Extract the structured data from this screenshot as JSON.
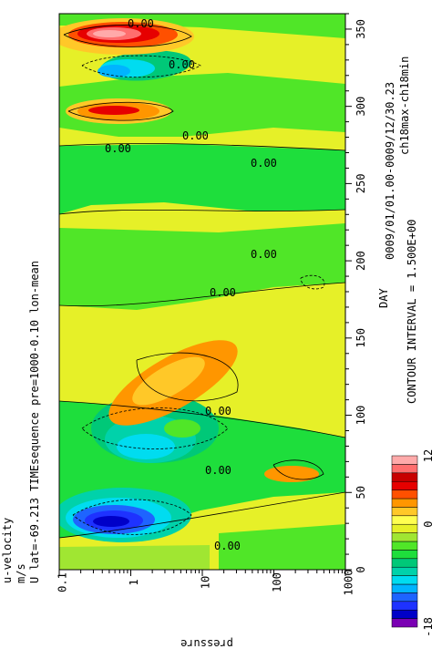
{
  "header": {
    "line1": "u-velocity",
    "line2": "m/s",
    "line3": "U lat=-69.213 TIMEsequence pre=1000-0.10 lon-mean",
    "line4": "0009/01/01.00-0009/12/30.23",
    "line5": "ch18max-ch18min"
  },
  "contour_interval_text": "CONTOUR INTERVAL = 1.500E+00",
  "chart_data": {
    "type": "heatmap",
    "title": "u-velocity",
    "units": "m/s",
    "xlabel": "DAY",
    "ylabel": "pressure",
    "x_axis": {
      "range": [
        0,
        360
      ],
      "ticks": [
        "0",
        "50",
        "100",
        "150",
        "200",
        "250",
        "300",
        "350"
      ]
    },
    "y_axis": {
      "scale": "log",
      "range": [
        0.1,
        1000
      ],
      "ticks": [
        "0.1",
        "1",
        "10",
        "100",
        "1000"
      ]
    },
    "contour_interval": 1.5,
    "contour_labels": [
      "0.00",
      "0.00",
      "0.00",
      "0.00",
      "0.00",
      "0.00",
      "0.00",
      "0.00",
      "0.00",
      "0.00"
    ],
    "colorbar": {
      "min": -18,
      "max": 12,
      "tick_labels": [
        "-18",
        "0",
        "12"
      ],
      "colors": [
        "#7a00b3",
        "#0000c8",
        "#1e32ff",
        "#1e64ff",
        "#00b4ff",
        "#00dcf0",
        "#00d2aa",
        "#00c878",
        "#1ede3c",
        "#50e628",
        "#a0e632",
        "#e6f028",
        "#ffff50",
        "#ffc828",
        "#ff9600",
        "#ff5000",
        "#e60000",
        "#c80000",
        "#ff6e6e",
        "#ffaaaa"
      ]
    }
  }
}
